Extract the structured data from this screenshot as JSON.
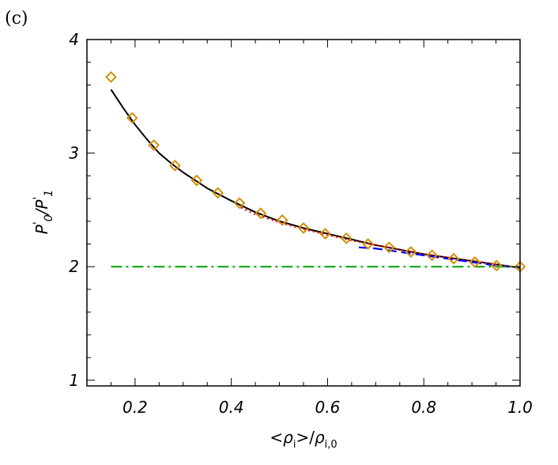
{
  "chart_data": {
    "type": "line",
    "panel_label": "(c)",
    "xlabel": "<ρi>/ρi,0",
    "ylabel": "P'0/P'1",
    "xlabel_parts": {
      "open": "<",
      "rho": "ρ",
      "sub1": "i",
      "mid": ">/",
      "rho2": "ρ",
      "sub2": "i,0"
    },
    "ylabel_parts": {
      "p": "P",
      "prime": "'",
      "sub0": "0",
      "slash": "/",
      "p2": "P",
      "prime2": "'",
      "sub1": "1"
    },
    "xlim": [
      0.1,
      1.0
    ],
    "ylim": [
      0.95,
      4.0
    ],
    "x_ticks": [
      0.2,
      0.4,
      0.6,
      0.8,
      1.0
    ],
    "x_tick_labels": [
      "0.2",
      "0.4",
      "0.6",
      "0.8",
      "1.0"
    ],
    "y_ticks": [
      1,
      2,
      3,
      4
    ],
    "y_tick_labels": [
      "1",
      "2",
      "3",
      "4"
    ],
    "grid": false,
    "series": [
      {
        "style": "solid",
        "color": "#000000",
        "x": [
          0.15,
          0.175,
          0.2,
          0.225,
          0.25,
          0.275,
          0.3,
          0.35,
          0.4,
          0.45,
          0.5,
          0.55,
          0.6,
          0.65,
          0.7,
          0.75,
          0.8,
          0.85,
          0.9,
          0.95,
          1.0
        ],
        "y": [
          3.56,
          3.4,
          3.25,
          3.12,
          3.0,
          2.91,
          2.83,
          2.69,
          2.58,
          2.48,
          2.4,
          2.34,
          2.29,
          2.24,
          2.19,
          2.15,
          2.11,
          2.08,
          2.05,
          2.02,
          1.99
        ]
      },
      {
        "style": "dotted",
        "color": "#ff0000",
        "x": [
          0.42,
          0.45,
          0.5,
          0.55,
          0.6,
          0.65,
          0.7,
          0.75,
          0.8,
          0.85,
          0.9,
          0.95,
          1.0
        ],
        "y": [
          2.52,
          2.46,
          2.39,
          2.33,
          2.28,
          2.23,
          2.19,
          2.15,
          2.11,
          2.08,
          2.05,
          2.02,
          1.99
        ]
      },
      {
        "style": "dashed",
        "color": "#0000ff",
        "x": [
          0.665,
          0.7,
          0.75,
          0.8,
          0.85,
          0.9,
          0.95,
          1.0
        ],
        "y": [
          2.17,
          2.16,
          2.13,
          2.1,
          2.07,
          2.04,
          2.01,
          1.99
        ]
      },
      {
        "style": "dashdot",
        "color": "#00a000",
        "x": [
          0.15,
          1.0
        ],
        "y": [
          2.0,
          2.0
        ]
      },
      {
        "style": "markers",
        "marker": "diamond",
        "color": "#d4900a",
        "x": [
          0.15,
          0.194,
          0.239,
          0.283,
          0.328,
          0.372,
          0.417,
          0.461,
          0.506,
          0.55,
          0.595,
          0.639,
          0.684,
          0.728,
          0.773,
          0.817,
          0.862,
          0.906,
          0.951,
          1.0
        ],
        "y": [
          3.67,
          3.31,
          3.07,
          2.89,
          2.76,
          2.65,
          2.56,
          2.47,
          2.41,
          2.34,
          2.29,
          2.25,
          2.2,
          2.17,
          2.13,
          2.1,
          2.07,
          2.04,
          2.01,
          2.0
        ]
      }
    ]
  }
}
